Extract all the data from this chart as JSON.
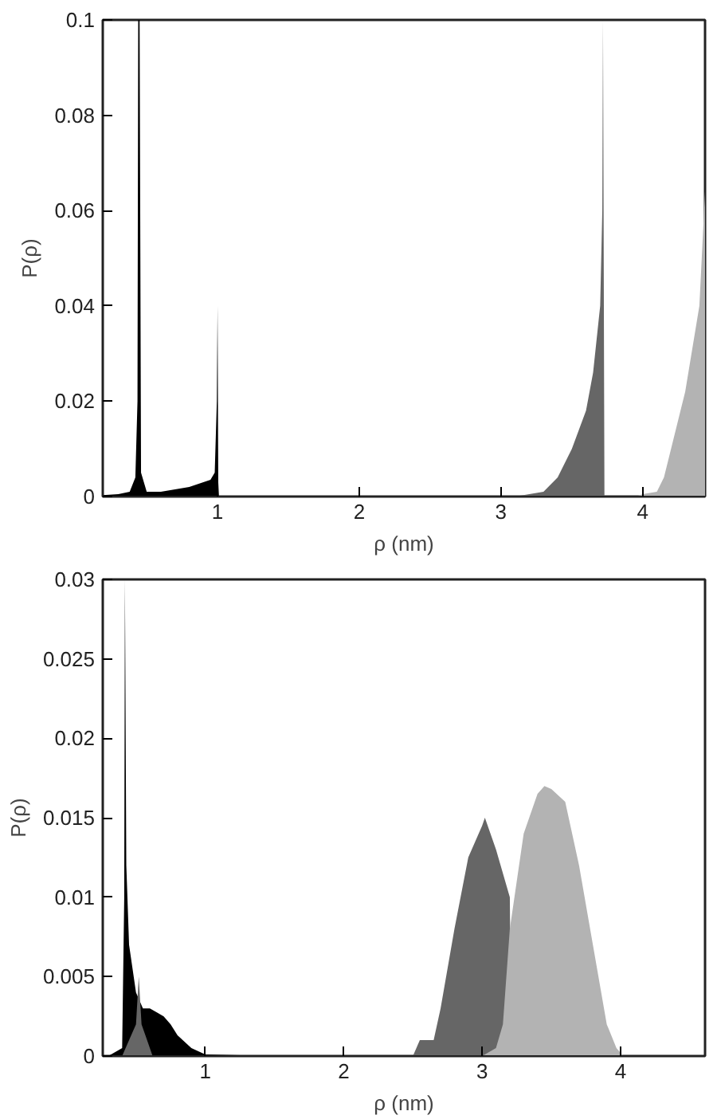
{
  "chart_data": [
    {
      "type": "area",
      "xlabel": "ρ (nm)",
      "ylabel": "P(ρ)",
      "xlim": [
        0.19,
        4.44
      ],
      "ylim": [
        0,
        0.1
      ],
      "xticks": [
        1,
        2,
        3,
        4
      ],
      "yticks": [
        0,
        0.02,
        0.04,
        0.06,
        0.08,
        {
          "value": 0.1,
          "label": "0.1"
        }
      ],
      "series": [
        {
          "color": "#000000",
          "x": [
            0.19,
            0.3,
            0.38,
            0.42,
            0.435,
            0.44,
            0.45,
            0.46,
            0.5,
            0.6,
            0.7,
            0.8,
            0.9,
            0.95,
            0.98,
            0.995,
            1.0,
            1.005,
            1.01
          ],
          "values": [
            0.0003,
            0.0005,
            0.001,
            0.004,
            0.02,
            0.1,
            0.1,
            0.005,
            0.001,
            0.001,
            0.0015,
            0.002,
            0.003,
            0.0035,
            0.005,
            0.02,
            0.04,
            0.003,
            0
          ]
        },
        {
          "color": "#666666",
          "x": [
            3.1,
            3.2,
            3.3,
            3.4,
            3.5,
            3.6,
            3.65,
            3.7,
            3.715,
            3.72,
            3.73
          ],
          "values": [
            0,
            0.0005,
            0.001,
            0.004,
            0.01,
            0.018,
            0.026,
            0.04,
            0.06,
            0.1,
            0
          ]
        },
        {
          "color": "#b3b3b3",
          "x": [
            3.95,
            4.0,
            4.1,
            4.15,
            4.2,
            4.3,
            4.4,
            4.44
          ],
          "values": [
            0,
            0.0005,
            0.001,
            0.004,
            0.01,
            0.022,
            0.04,
            0.064
          ]
        }
      ]
    },
    {
      "type": "area",
      "xlabel": "ρ (nm)",
      "ylabel": "P(ρ)",
      "xlim": [
        0.26,
        4.61
      ],
      "ylim": [
        0,
        0.03
      ],
      "xticks": [
        1,
        2,
        3,
        4
      ],
      "yticks": [
        0,
        0.005,
        0.01,
        0.015,
        0.02,
        0.025,
        0.03
      ],
      "series": [
        {
          "color": "#000000",
          "x": [
            0.3,
            0.4,
            0.415,
            0.42,
            0.43,
            0.45,
            0.5,
            0.55,
            0.6,
            0.7,
            0.75,
            0.8,
            0.9,
            1.0,
            1.5
          ],
          "values": [
            0,
            0.0005,
            0.01,
            0.03,
            0.012,
            0.007,
            0.004,
            0.003,
            0.003,
            0.0025,
            0.002,
            0.0013,
            0.0005,
            0.0001,
            0
          ]
        },
        {
          "color": "#666666",
          "x": [
            0.4,
            0.45,
            0.5,
            0.52,
            0.54,
            0.58,
            0.62,
            2.5,
            2.55,
            2.65,
            2.7,
            2.8,
            2.9,
            3.0,
            3.02,
            3.1,
            3.2,
            3.21
          ],
          "values": [
            0,
            0.001,
            0.002,
            0.005,
            0.002,
            0.001,
            0,
            0,
            0.001,
            0.001,
            0.003,
            0.008,
            0.0125,
            0.0145,
            0.015,
            0.013,
            0.01,
            0
          ]
        },
        {
          "color": "#b3b3b3",
          "x": [
            3.0,
            3.1,
            3.15,
            3.2,
            3.3,
            3.4,
            3.45,
            3.5,
            3.6,
            3.7,
            3.8,
            3.9,
            3.97,
            4.02
          ],
          "values": [
            0,
            0.0005,
            0.002,
            0.008,
            0.014,
            0.0165,
            0.017,
            0.0168,
            0.016,
            0.012,
            0.007,
            0.002,
            0.0005,
            0
          ]
        }
      ]
    }
  ]
}
